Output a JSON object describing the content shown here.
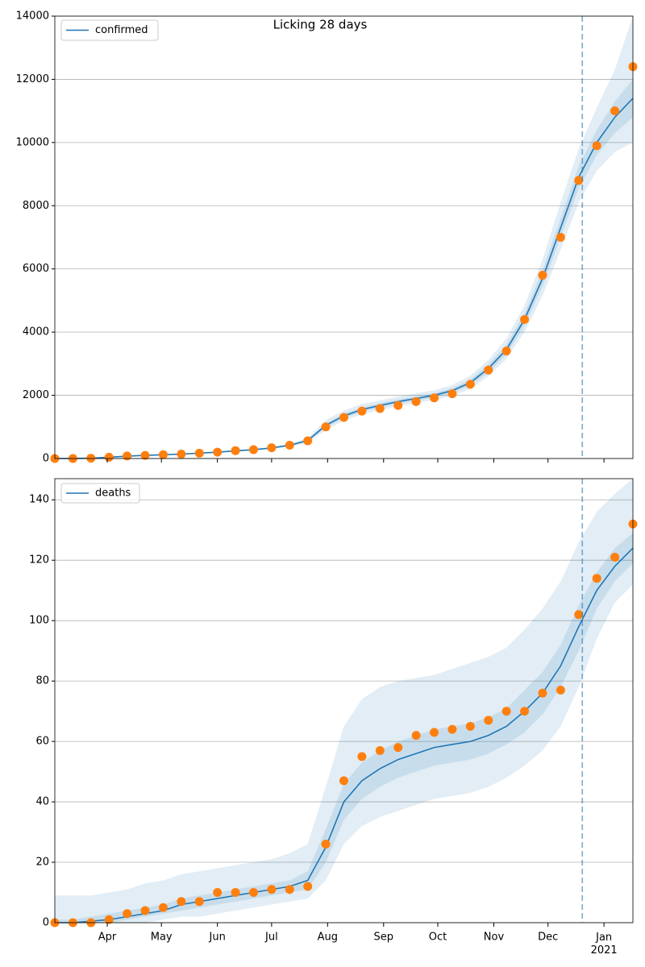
{
  "chart_data": [
    {
      "type": "line",
      "title": "Licking 28 days",
      "x": [
        "2020-03-03",
        "2020-03-13",
        "2020-03-23",
        "2020-04-02",
        "2020-04-12",
        "2020-04-22",
        "2020-05-02",
        "2020-05-12",
        "2020-05-22",
        "2020-06-01",
        "2020-06-11",
        "2020-06-21",
        "2020-07-01",
        "2020-07-11",
        "2020-07-21",
        "2020-07-31",
        "2020-08-10",
        "2020-08-20",
        "2020-08-30",
        "2020-09-09",
        "2020-09-19",
        "2020-09-29",
        "2020-10-09",
        "2020-10-19",
        "2020-10-29",
        "2020-11-08",
        "2020-11-18",
        "2020-11-28",
        "2020-12-08",
        "2020-12-18",
        "2020-12-28",
        "2021-01-07",
        "2021-01-17"
      ],
      "xlim": [
        "2020-03-03",
        "2021-01-17"
      ],
      "ylim": [
        0,
        14000
      ],
      "yticks": [
        0,
        2000,
        4000,
        6000,
        8000,
        10000,
        12000,
        14000
      ],
      "grid": true,
      "vline": "2020-12-20",
      "legend": "upper left",
      "series": [
        {
          "name": "confirmed",
          "color": "#1f77b4",
          "values": [
            0,
            2,
            10,
            40,
            75,
            100,
            120,
            140,
            170,
            200,
            245,
            280,
            335,
            420,
            570,
            1050,
            1350,
            1550,
            1680,
            1800,
            1900,
            2000,
            2150,
            2400,
            2850,
            3450,
            4400,
            5700,
            7300,
            8900,
            10000,
            10800,
            11400
          ]
        }
      ],
      "points": {
        "color": "#ff7f0e",
        "values": [
          0,
          0,
          10,
          40,
          80,
          100,
          120,
          140,
          170,
          200,
          250,
          280,
          340,
          420,
          560,
          1000,
          1300,
          1500,
          1580,
          1680,
          1800,
          1920,
          2050,
          2350,
          2800,
          3400,
          4400,
          5800,
          7000,
          8800,
          9900,
          11000,
          12400
        ]
      },
      "bands": [
        {
          "color": "#1f77b4",
          "lower": [
            0,
            0,
            5,
            28,
            62,
            88,
            108,
            128,
            155,
            185,
            225,
            255,
            300,
            375,
            500,
            900,
            1200,
            1400,
            1530,
            1650,
            1750,
            1850,
            1980,
            2200,
            2600,
            3150,
            4000,
            5150,
            6600,
            8100,
            9100,
            9700,
            10000
          ],
          "upper": [
            0,
            5,
            16,
            52,
            88,
            112,
            132,
            152,
            185,
            215,
            265,
            305,
            370,
            470,
            650,
            1220,
            1520,
            1720,
            1840,
            1960,
            2060,
            2160,
            2330,
            2620,
            3120,
            3800,
            4850,
            6300,
            8100,
            9800,
            11100,
            12300,
            14000
          ]
        },
        {
          "color": "#1f77b4",
          "lower": [
            0,
            1,
            8,
            35,
            70,
            95,
            115,
            135,
            165,
            195,
            235,
            270,
            320,
            400,
            540,
            980,
            1280,
            1480,
            1610,
            1730,
            1830,
            1930,
            2070,
            2300,
            2720,
            3300,
            4200,
            5450,
            7000,
            8550,
            9600,
            10300,
            10800
          ],
          "upper": [
            0,
            3,
            12,
            45,
            80,
            105,
            125,
            145,
            175,
            205,
            255,
            290,
            350,
            440,
            600,
            1120,
            1420,
            1620,
            1750,
            1870,
            1970,
            2070,
            2230,
            2500,
            2980,
            3600,
            4600,
            5950,
            7600,
            9250,
            10400,
            11300,
            12000
          ]
        }
      ]
    },
    {
      "type": "line",
      "x": [
        "2020-03-03",
        "2020-03-13",
        "2020-03-23",
        "2020-04-02",
        "2020-04-12",
        "2020-04-22",
        "2020-05-02",
        "2020-05-12",
        "2020-05-22",
        "2020-06-01",
        "2020-06-11",
        "2020-06-21",
        "2020-07-01",
        "2020-07-11",
        "2020-07-21",
        "2020-07-31",
        "2020-08-10",
        "2020-08-20",
        "2020-08-30",
        "2020-09-09",
        "2020-09-19",
        "2020-09-29",
        "2020-10-09",
        "2020-10-19",
        "2020-10-29",
        "2020-11-08",
        "2020-11-18",
        "2020-11-28",
        "2020-12-08",
        "2020-12-18",
        "2020-12-28",
        "2021-01-07",
        "2021-01-17"
      ],
      "xlim": [
        "2020-03-03",
        "2021-01-17"
      ],
      "xticks": [
        {
          "value": "2020-04-01",
          "label": "Apr"
        },
        {
          "value": "2020-05-01",
          "label": "May"
        },
        {
          "value": "2020-06-01",
          "label": "Jun"
        },
        {
          "value": "2020-07-01",
          "label": "Jul"
        },
        {
          "value": "2020-08-01",
          "label": "Aug"
        },
        {
          "value": "2020-09-01",
          "label": "Sep"
        },
        {
          "value": "2020-10-01",
          "label": "Oct"
        },
        {
          "value": "2020-11-01",
          "label": "Nov"
        },
        {
          "value": "2020-12-01",
          "label": "Dec"
        },
        {
          "value": "2021-01-01",
          "label": "Jan\n2021"
        }
      ],
      "ylim": [
        0,
        147
      ],
      "yticks": [
        0,
        20,
        40,
        60,
        80,
        100,
        120,
        140
      ],
      "grid": true,
      "vline": "2020-12-20",
      "legend": "upper left",
      "series": [
        {
          "name": "deaths",
          "color": "#1f77b4",
          "values": [
            0,
            0,
            0.5,
            1,
            2,
            3,
            4,
            6,
            7,
            8,
            9,
            10,
            11,
            12,
            14,
            25,
            40,
            47,
            51,
            54,
            56,
            58,
            59,
            60,
            62,
            65,
            70,
            76,
            85,
            98,
            110,
            118,
            124
          ]
        }
      ],
      "points": {
        "color": "#ff7f0e",
        "values": [
          0,
          0,
          0,
          1,
          3,
          4,
          5,
          7,
          7,
          10,
          10,
          10,
          11,
          11,
          12,
          26,
          47,
          55,
          57,
          58,
          62,
          63,
          64,
          65,
          67,
          70,
          70,
          76,
          77,
          102,
          114,
          121,
          132
        ]
      },
      "bands": [
        {
          "color": "#1f77b4",
          "lower": [
            0,
            0,
            0,
            0,
            0,
            0,
            1,
            2,
            2,
            3,
            4,
            5,
            6,
            7,
            8,
            14,
            26,
            32,
            35,
            37,
            39,
            41,
            42,
            43,
            45,
            48,
            52,
            57,
            65,
            78,
            94,
            106,
            112
          ],
          "upper": [
            9,
            9,
            9,
            10,
            11,
            13,
            14,
            16,
            17,
            18,
            19,
            20,
            21,
            23,
            26,
            45,
            65,
            74,
            78,
            80,
            81,
            82,
            84,
            86,
            88,
            91,
            97,
            104,
            113,
            126,
            136,
            142,
            147
          ]
        },
        {
          "color": "#1f77b4",
          "lower": [
            0,
            0,
            0,
            0,
            1,
            2,
            3,
            4,
            5,
            6,
            7,
            8,
            9,
            10,
            11,
            20,
            34,
            41,
            45,
            48,
            50,
            52,
            53,
            54,
            56,
            59,
            63,
            69,
            78,
            90,
            104,
            113,
            119
          ],
          "upper": [
            1,
            1,
            2,
            3,
            4,
            5,
            6,
            8,
            9,
            10,
            11,
            12,
            13,
            14,
            17,
            31,
            46,
            53,
            57,
            60,
            62,
            64,
            65,
            66,
            68,
            71,
            77,
            83,
            92,
            105,
            116,
            124,
            129
          ]
        }
      ]
    }
  ]
}
